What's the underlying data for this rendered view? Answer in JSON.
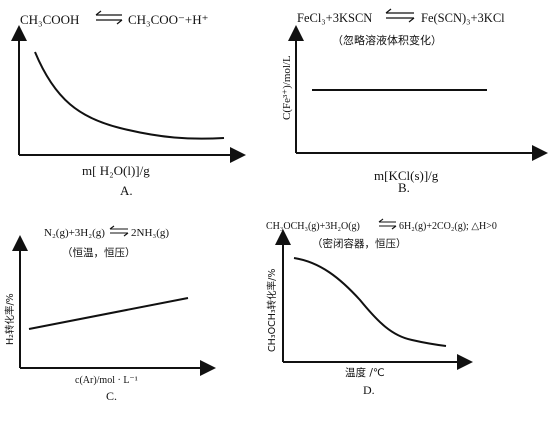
{
  "panels": [
    {
      "id": "A",
      "equation_left": "CH₃COOH",
      "equation_right": "CH₃COO⁻+H⁺",
      "xlabel": "m[ H₂O(l)]/g",
      "caption": "A."
    },
    {
      "id": "B",
      "equation_left": "FeCl₃+3KSCN",
      "equation_right": "Fe(SCN)₃+3KCl",
      "note": "（忽略溶液体积变化）",
      "ylabel": "C(Fe³⁺)/mol/L",
      "xlabel": "m[KCl(s)]/g",
      "caption": "B."
    },
    {
      "id": "C",
      "equation_left": "N₂(g)+3H₂(g)",
      "equation_right": "2NH₃(g)",
      "note": "（恒温，恒压）",
      "ylabel": "H₂转化率/%",
      "xlabel": "c(Ar)/mol · L⁻¹",
      "caption": "C."
    },
    {
      "id": "D",
      "equation_left": "CH₃OCH₃(g)+3H₂O(g)",
      "equation_right": "6H₂(g)+2CO₂(g); △H>0",
      "note": "（密闭容器，恒压）",
      "ylabel": "CH₃OCH₃转化率/%",
      "xlabel": "温度 /℃",
      "caption": "D."
    }
  ]
}
